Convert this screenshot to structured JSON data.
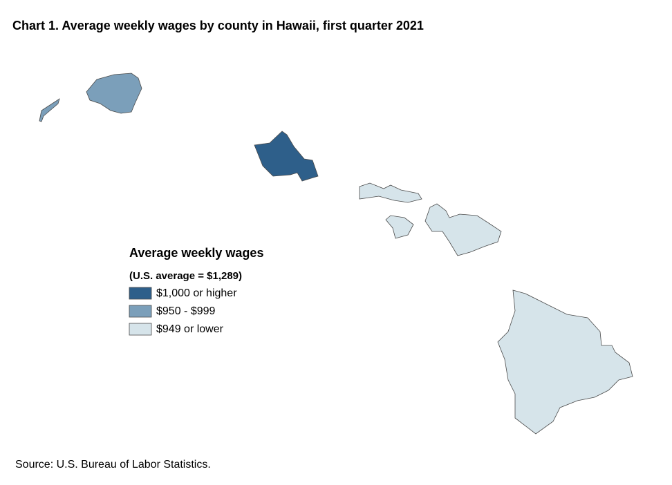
{
  "title": "Chart 1. Average weekly wages by county in Hawaii, first quarter 2021",
  "legend": {
    "title": "Average weekly wages",
    "subtitle": "(U.S. average = $1,289)",
    "items": [
      {
        "label": "$1,000 or higher",
        "color": "#2e5f8a"
      },
      {
        "label": "$950 - $999",
        "color": "#7b9fba"
      },
      {
        "label": "$949 or lower",
        "color": "#d6e4ea"
      }
    ]
  },
  "source": "Source: U.S. Bureau of Labor Statistics."
}
